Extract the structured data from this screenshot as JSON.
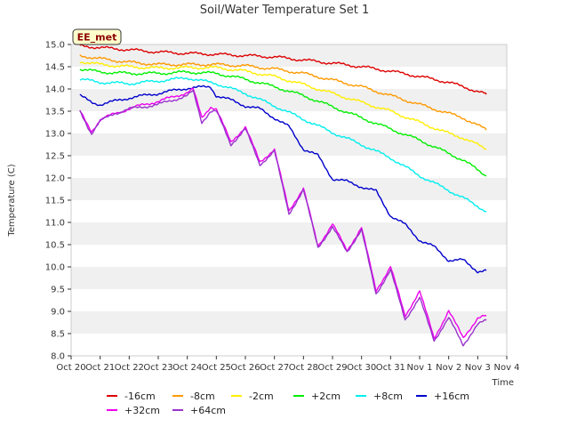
{
  "chart_data": {
    "type": "line",
    "title": "Soil/Water Temperature Set 1",
    "xlabel": "Time",
    "ylabel": "Temperature (C)",
    "badge": "EE_met",
    "ylim": [
      8.0,
      15.0
    ],
    "yticks": [
      "8.0",
      "8.5",
      "9.0",
      "9.5",
      "10.0",
      "10.5",
      "11.0",
      "11.5",
      "12.0",
      "12.5",
      "13.0",
      "13.5",
      "14.0",
      "14.5",
      "15.0"
    ],
    "xlim": [
      0,
      15
    ],
    "xticks": [
      "Oct 20",
      "Oct 21",
      "Oct 22",
      "Oct 23",
      "Oct 24",
      "Oct 25",
      "Oct 26",
      "Oct 27",
      "Oct 28",
      "Oct 29",
      "Oct 30",
      "Oct 31",
      "Nov 1",
      "Nov 2",
      "Nov 3",
      "Nov 4"
    ],
    "x_units": "days since Oct 20",
    "background_bands": [
      "#ffffff",
      "#f0f0f0"
    ],
    "series": [
      {
        "name": "-16cm",
        "color": "#dd0000",
        "x": [
          0.3,
          1,
          2,
          3,
          4,
          5,
          6,
          7,
          8,
          9,
          10,
          11,
          12,
          13,
          13.5,
          14.3
        ],
        "y": [
          14.97,
          14.93,
          14.88,
          14.83,
          14.8,
          14.78,
          14.75,
          14.72,
          14.65,
          14.58,
          14.5,
          14.4,
          14.28,
          14.15,
          14.05,
          13.88
        ]
      },
      {
        "name": "-8cm",
        "color": "#ff9900",
        "x": [
          0.3,
          1,
          2,
          3,
          4,
          5,
          6,
          7,
          8,
          9,
          10,
          11,
          12,
          13,
          13.5,
          14.3
        ],
        "y": [
          14.75,
          14.68,
          14.6,
          14.55,
          14.55,
          14.55,
          14.52,
          14.45,
          14.35,
          14.2,
          14.05,
          13.85,
          13.65,
          13.45,
          13.35,
          13.08
        ]
      },
      {
        "name": "-2cm",
        "color": "#ffee00",
        "x": [
          0.3,
          1,
          2,
          3,
          4,
          5,
          6,
          7,
          8,
          9,
          10,
          11,
          12,
          13,
          13.5,
          14.3
        ],
        "y": [
          14.62,
          14.55,
          14.5,
          14.47,
          14.48,
          14.48,
          14.4,
          14.28,
          14.1,
          13.9,
          13.7,
          13.5,
          13.25,
          13.0,
          12.9,
          12.65
        ]
      },
      {
        "name": "+2cm",
        "color": "#00ee00",
        "x": [
          0.3,
          1,
          2,
          3,
          4,
          5,
          6,
          7,
          8,
          9,
          10,
          11,
          12,
          13,
          13.5,
          14.3
        ],
        "y": [
          14.45,
          14.38,
          14.35,
          14.35,
          14.38,
          14.35,
          14.22,
          14.05,
          13.85,
          13.6,
          13.35,
          13.1,
          12.85,
          12.55,
          12.4,
          12.05
        ]
      },
      {
        "name": "+8cm",
        "color": "#00eeee",
        "x": [
          0.3,
          1,
          2,
          3,
          4,
          5,
          6,
          7,
          8,
          9,
          10,
          11,
          12,
          13,
          13.5,
          14.3
        ],
        "y": [
          14.22,
          14.15,
          14.12,
          14.18,
          14.25,
          14.12,
          13.9,
          13.62,
          13.32,
          13.02,
          12.75,
          12.45,
          12.05,
          11.72,
          11.55,
          11.25
        ]
      },
      {
        "name": "+16cm",
        "color": "#0000cc",
        "x": [
          0.3,
          0.7,
          1,
          2,
          3,
          4,
          4.8,
          5,
          5.5,
          6,
          6.5,
          7,
          7.5,
          8,
          8.5,
          9,
          9.5,
          10,
          10.5,
          11,
          11.5,
          12,
          12.5,
          13,
          13.5,
          14,
          14.3
        ],
        "y": [
          13.85,
          13.7,
          13.65,
          13.8,
          13.9,
          14.02,
          14.05,
          13.85,
          13.75,
          13.62,
          13.55,
          13.35,
          13.15,
          12.65,
          12.5,
          11.98,
          11.92,
          11.8,
          11.7,
          11.15,
          10.95,
          10.6,
          10.45,
          10.15,
          10.15,
          9.9,
          9.92
        ]
      },
      {
        "name": "+32cm",
        "color": "#ee00ee",
        "x": [
          0.3,
          0.7,
          1,
          1.5,
          2,
          2.5,
          3,
          3.5,
          4,
          4.2,
          4.5,
          4.8,
          5,
          5.5,
          6,
          6.5,
          7,
          7.5,
          8,
          8.5,
          9,
          9.5,
          10,
          10.5,
          11,
          11.5,
          12,
          12.5,
          13,
          13.5,
          14,
          14.3
        ],
        "y": [
          13.5,
          13.05,
          13.3,
          13.45,
          13.55,
          13.65,
          13.72,
          13.82,
          13.92,
          14.0,
          13.35,
          13.6,
          13.55,
          12.8,
          13.15,
          12.35,
          12.65,
          11.25,
          11.78,
          10.45,
          10.98,
          10.35,
          10.9,
          9.45,
          10.02,
          8.88,
          9.47,
          8.38,
          9.02,
          8.4,
          8.85,
          8.9
        ]
      },
      {
        "name": "+64cm",
        "color": "#9933cc",
        "x": [
          0.3,
          0.7,
          1,
          1.5,
          2,
          2.5,
          3,
          3.5,
          4,
          4.2,
          4.5,
          4.8,
          5,
          5.5,
          6,
          6.5,
          7,
          7.5,
          8,
          8.5,
          9,
          9.5,
          10,
          10.5,
          11,
          11.5,
          12,
          12.5,
          13,
          13.5,
          14,
          14.3
        ],
        "y": [
          13.5,
          13.0,
          13.28,
          13.45,
          13.55,
          13.6,
          13.65,
          13.75,
          13.85,
          13.95,
          13.25,
          13.5,
          13.5,
          12.75,
          13.1,
          12.3,
          12.6,
          11.2,
          11.72,
          10.45,
          10.88,
          10.35,
          10.82,
          9.4,
          9.92,
          8.82,
          9.3,
          8.35,
          8.85,
          8.25,
          8.7,
          8.8
        ]
      }
    ]
  }
}
